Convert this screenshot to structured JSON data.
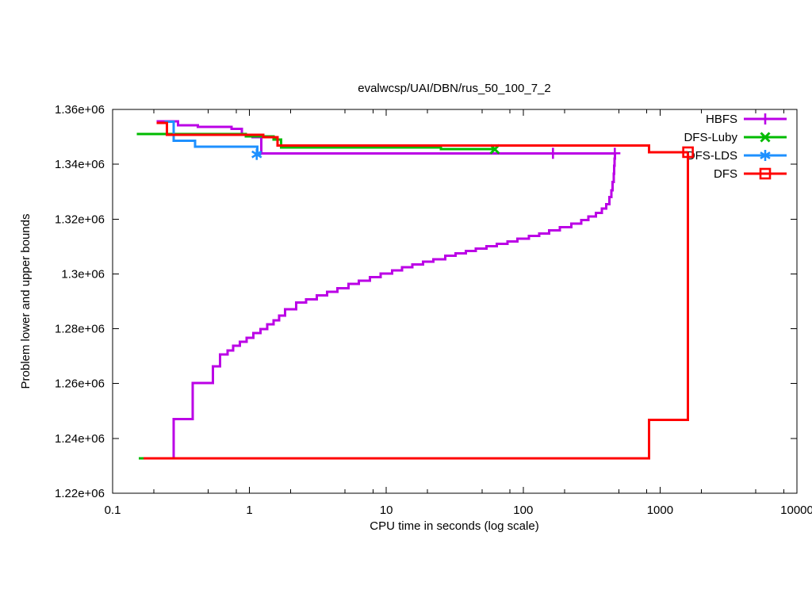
{
  "chart_data": {
    "type": "line",
    "title": "evalwcsp/UAI/DBN/rus_50_100_7_2",
    "xlabel": "CPU time in seconds (log scale)",
    "ylabel": "Problem lower and upper bounds",
    "x_scale": "log",
    "grid": false,
    "legend_position": "top-right-inside",
    "xlim": [
      0.1,
      10000
    ],
    "ylim": [
      1220000,
      1360000
    ],
    "x_ticks": [
      0.1,
      1,
      10,
      100,
      1000,
      10000
    ],
    "x_tick_labels": [
      "0.1",
      "1",
      "10",
      "100",
      "1000",
      "10000"
    ],
    "x_minor_ticks": [
      0.2,
      0.5,
      0.8,
      2,
      5,
      8,
      20,
      50,
      80,
      200,
      500,
      800,
      2000,
      5000,
      8000
    ],
    "y_ticks": [
      1220000,
      1240000,
      1260000,
      1280000,
      1300000,
      1320000,
      1340000,
      1360000
    ],
    "y_tick_labels": [
      "1.22e+06",
      "1.24e+06",
      "1.26e+06",
      "1.28e+06",
      "1.3e+06",
      "1.32e+06",
      "1.34e+06",
      "1.36e+06"
    ],
    "series": [
      {
        "name": "HBFS",
        "color": "#bb00e6",
        "marker": "plus",
        "segments": [
          [
            [
              0.21,
              1355700
            ],
            [
              0.3,
              1354200
            ],
            [
              0.42,
              1353600
            ],
            [
              0.74,
              1352900
            ],
            [
              0.88,
              1350800
            ],
            [
              1.05,
              1349900
            ],
            [
              1.22,
              1344000
            ],
            [
              467,
              1344000
            ]
          ],
          [
            [
              0.276,
              1232700
            ],
            [
              0.28,
              1247000
            ],
            [
              0.385,
              1260200
            ],
            [
              0.54,
              1266300
            ],
            [
              0.61,
              1270600
            ],
            [
              0.69,
              1272100
            ],
            [
              0.76,
              1273800
            ],
            [
              0.85,
              1275300
            ],
            [
              0.95,
              1276700
            ],
            [
              1.07,
              1278400
            ],
            [
              1.2,
              1279900
            ],
            [
              1.35,
              1281600
            ],
            [
              1.5,
              1283100
            ],
            [
              1.65,
              1284800
            ],
            [
              1.82,
              1287100
            ],
            [
              2.2,
              1289500
            ],
            [
              2.6,
              1290700
            ],
            [
              3.1,
              1292100
            ],
            [
              3.7,
              1293400
            ],
            [
              4.4,
              1294800
            ],
            [
              5.3,
              1296300
            ],
            [
              6.3,
              1297500
            ],
            [
              7.6,
              1298800
            ],
            [
              9.1,
              1300100
            ],
            [
              11,
              1301300
            ],
            [
              13,
              1302400
            ],
            [
              15.5,
              1303400
            ],
            [
              18.5,
              1304400
            ],
            [
              22,
              1305400
            ],
            [
              27,
              1306600
            ],
            [
              32,
              1307500
            ],
            [
              38,
              1308300
            ],
            [
              45,
              1309200
            ],
            [
              54,
              1310100
            ],
            [
              64,
              1311000
            ],
            [
              77,
              1311900
            ],
            [
              91,
              1312800
            ],
            [
              110,
              1313800
            ],
            [
              131,
              1314800
            ],
            [
              155,
              1315900
            ],
            [
              185,
              1317000
            ],
            [
              224,
              1318400
            ],
            [
              265,
              1319700
            ],
            [
              300,
              1321000
            ],
            [
              340,
              1322300
            ],
            [
              375,
              1323800
            ],
            [
              405,
              1325500
            ],
            [
              425,
              1328000
            ],
            [
              440,
              1330500
            ],
            [
              450,
              1333500
            ],
            [
              458,
              1336500
            ],
            [
              463,
              1339500
            ],
            [
              466,
              1342000
            ],
            [
              467,
              1344000
            ]
          ]
        ],
        "point_markers": [
          [
            165,
            1344000
          ],
          [
            467,
            1344000
          ]
        ]
      },
      {
        "name": "DFS-Luby",
        "color": "#00bb00",
        "marker": "cross",
        "segments": [
          [
            [
              0.15,
              1351000
            ],
            [
              0.94,
              1350100
            ],
            [
              1.5,
              1349000
            ],
            [
              1.7,
              1346100
            ],
            [
              25,
              1345500
            ],
            [
              62,
              1345500
            ]
          ],
          [
            [
              0.155,
              1232700
            ],
            [
              0.175,
              1232700
            ]
          ]
        ],
        "point_markers": [
          [
            62,
            1345500
          ]
        ]
      },
      {
        "name": "DFS-LDS",
        "color": "#1e90ff",
        "marker": "asterisk",
        "segments": [
          [
            [
              0.24,
              1355500
            ],
            [
              0.28,
              1348600
            ],
            [
              0.4,
              1346400
            ],
            [
              1.14,
              1343600
            ],
            [
              1.22,
              1343600
            ]
          ]
        ],
        "point_markers": [
          [
            1.13,
            1343600
          ]
        ]
      },
      {
        "name": "DFS",
        "color": "#ff0000",
        "marker": "square",
        "segments": [
          [
            [
              0.21,
              1355100
            ],
            [
              0.25,
              1350800
            ],
            [
              1.26,
              1349900
            ],
            [
              1.6,
              1346900
            ],
            [
              830,
              1344400
            ],
            [
              1600,
              1344400
            ]
          ],
          [
            [
              0.168,
              1232700
            ],
            [
              830,
              1246700
            ],
            [
              1600,
              1344400
            ]
          ]
        ],
        "point_markers": [
          [
            1600,
            1344400
          ]
        ]
      }
    ]
  }
}
